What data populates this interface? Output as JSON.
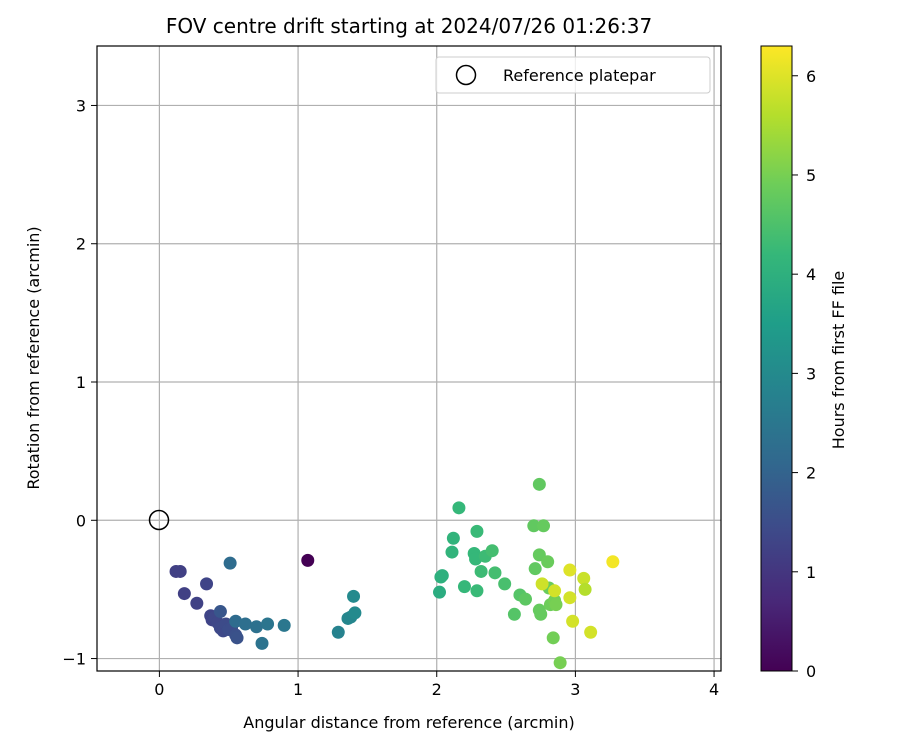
{
  "chart_data": {
    "type": "scatter",
    "title": "FOV centre drift starting at 2024/07/26 01:26:37",
    "xlabel": "Angular distance from reference (arcmin)",
    "ylabel": "Rotation from reference (arcmin)",
    "xlim": [
      -0.45,
      4.05
    ],
    "ylim": [
      -1.09,
      3.43
    ],
    "xticks": [
      0,
      1,
      2,
      3,
      4
    ],
    "yticks": [
      -1,
      0,
      1,
      2,
      3
    ],
    "grid": true,
    "legend": {
      "position": "top-right",
      "label": "Reference platepar"
    },
    "reference_point": {
      "x": 0,
      "y": 0
    },
    "colorbar": {
      "label": "Hours from first FF file",
      "range": [
        0,
        6.3
      ],
      "ticks": [
        0,
        1,
        2,
        3,
        4,
        5,
        6
      ],
      "colormap": "viridis"
    },
    "points": [
      {
        "x": 1.07,
        "y": -0.29,
        "hours": 0.0
      },
      {
        "x": 0.12,
        "y": -0.37,
        "hours": 1.2
      },
      {
        "x": 0.15,
        "y": -0.37,
        "hours": 1.2
      },
      {
        "x": 0.18,
        "y": -0.53,
        "hours": 1.2
      },
      {
        "x": 0.27,
        "y": -0.6,
        "hours": 1.25
      },
      {
        "x": 0.34,
        "y": -0.46,
        "hours": 1.3
      },
      {
        "x": 0.37,
        "y": -0.69,
        "hours": 1.3
      },
      {
        "x": 0.38,
        "y": -0.72,
        "hours": 1.3
      },
      {
        "x": 0.4,
        "y": -0.7,
        "hours": 1.35
      },
      {
        "x": 0.42,
        "y": -0.74,
        "hours": 1.35
      },
      {
        "x": 0.44,
        "y": -0.78,
        "hours": 1.4
      },
      {
        "x": 0.46,
        "y": -0.8,
        "hours": 1.4
      },
      {
        "x": 0.48,
        "y": -0.75,
        "hours": 1.45
      },
      {
        "x": 0.5,
        "y": -0.79,
        "hours": 1.5
      },
      {
        "x": 0.52,
        "y": -0.78,
        "hours": 1.5
      },
      {
        "x": 0.55,
        "y": -0.83,
        "hours": 1.55
      },
      {
        "x": 0.56,
        "y": -0.85,
        "hours": 1.6
      },
      {
        "x": 0.44,
        "y": -0.66,
        "hours": 1.7
      },
      {
        "x": 0.51,
        "y": -0.31,
        "hours": 2.2
      },
      {
        "x": 0.55,
        "y": -0.73,
        "hours": 2.2
      },
      {
        "x": 0.62,
        "y": -0.75,
        "hours": 2.3
      },
      {
        "x": 0.7,
        "y": -0.77,
        "hours": 2.35
      },
      {
        "x": 0.74,
        "y": -0.89,
        "hours": 2.4
      },
      {
        "x": 0.78,
        "y": -0.75,
        "hours": 2.45
      },
      {
        "x": 0.9,
        "y": -0.76,
        "hours": 2.5
      },
      {
        "x": 1.29,
        "y": -0.81,
        "hours": 2.8
      },
      {
        "x": 1.36,
        "y": -0.71,
        "hours": 2.9
      },
      {
        "x": 1.38,
        "y": -0.7,
        "hours": 2.9
      },
      {
        "x": 1.4,
        "y": -0.55,
        "hours": 3.0
      },
      {
        "x": 1.41,
        "y": -0.67,
        "hours": 3.0
      },
      {
        "x": 2.02,
        "y": -0.52,
        "hours": 3.9
      },
      {
        "x": 2.03,
        "y": -0.41,
        "hours": 4.0
      },
      {
        "x": 2.04,
        "y": -0.4,
        "hours": 4.0
      },
      {
        "x": 2.11,
        "y": -0.23,
        "hours": 4.1
      },
      {
        "x": 2.12,
        "y": -0.13,
        "hours": 4.1
      },
      {
        "x": 2.16,
        "y": 0.09,
        "hours": 4.2
      },
      {
        "x": 2.2,
        "y": -0.48,
        "hours": 4.2
      },
      {
        "x": 2.27,
        "y": -0.24,
        "hours": 4.2
      },
      {
        "x": 2.28,
        "y": -0.28,
        "hours": 4.2
      },
      {
        "x": 2.29,
        "y": -0.08,
        "hours": 4.25
      },
      {
        "x": 2.29,
        "y": -0.51,
        "hours": 4.25
      },
      {
        "x": 2.32,
        "y": -0.37,
        "hours": 4.3
      },
      {
        "x": 2.35,
        "y": -0.26,
        "hours": 4.3
      },
      {
        "x": 2.4,
        "y": -0.22,
        "hours": 4.4
      },
      {
        "x": 2.42,
        "y": -0.38,
        "hours": 4.4
      },
      {
        "x": 2.49,
        "y": -0.46,
        "hours": 4.45
      },
      {
        "x": 2.56,
        "y": -0.68,
        "hours": 4.6
      },
      {
        "x": 2.6,
        "y": -0.54,
        "hours": 4.6
      },
      {
        "x": 2.64,
        "y": -0.57,
        "hours": 4.7
      },
      {
        "x": 2.7,
        "y": -0.04,
        "hours": 4.75
      },
      {
        "x": 2.71,
        "y": -0.35,
        "hours": 4.75
      },
      {
        "x": 2.74,
        "y": 0.26,
        "hours": 4.75
      },
      {
        "x": 2.74,
        "y": -0.25,
        "hours": 4.8
      },
      {
        "x": 2.74,
        "y": -0.65,
        "hours": 4.8
      },
      {
        "x": 2.75,
        "y": -0.68,
        "hours": 4.8
      },
      {
        "x": 2.77,
        "y": -0.04,
        "hours": 4.8
      },
      {
        "x": 2.8,
        "y": -0.3,
        "hours": 4.85
      },
      {
        "x": 2.81,
        "y": -0.49,
        "hours": 4.85
      },
      {
        "x": 2.82,
        "y": -0.61,
        "hours": 4.9
      },
      {
        "x": 2.84,
        "y": -0.6,
        "hours": 4.9
      },
      {
        "x": 2.84,
        "y": -0.85,
        "hours": 4.95
      },
      {
        "x": 2.85,
        "y": -0.58,
        "hours": 4.95
      },
      {
        "x": 2.86,
        "y": -0.61,
        "hours": 5.0
      },
      {
        "x": 2.89,
        "y": -1.03,
        "hours": 5.0
      },
      {
        "x": 2.76,
        "y": -0.46,
        "hours": 5.85
      },
      {
        "x": 2.85,
        "y": -0.51,
        "hours": 5.9
      },
      {
        "x": 2.96,
        "y": -0.36,
        "hours": 6.0
      },
      {
        "x": 2.96,
        "y": -0.56,
        "hours": 5.9
      },
      {
        "x": 2.98,
        "y": -0.73,
        "hours": 5.9
      },
      {
        "x": 3.06,
        "y": -0.42,
        "hours": 5.8
      },
      {
        "x": 3.07,
        "y": -0.5,
        "hours": 5.6
      },
      {
        "x": 3.11,
        "y": -0.81,
        "hours": 5.9
      },
      {
        "x": 3.27,
        "y": -0.3,
        "hours": 6.2
      }
    ]
  }
}
